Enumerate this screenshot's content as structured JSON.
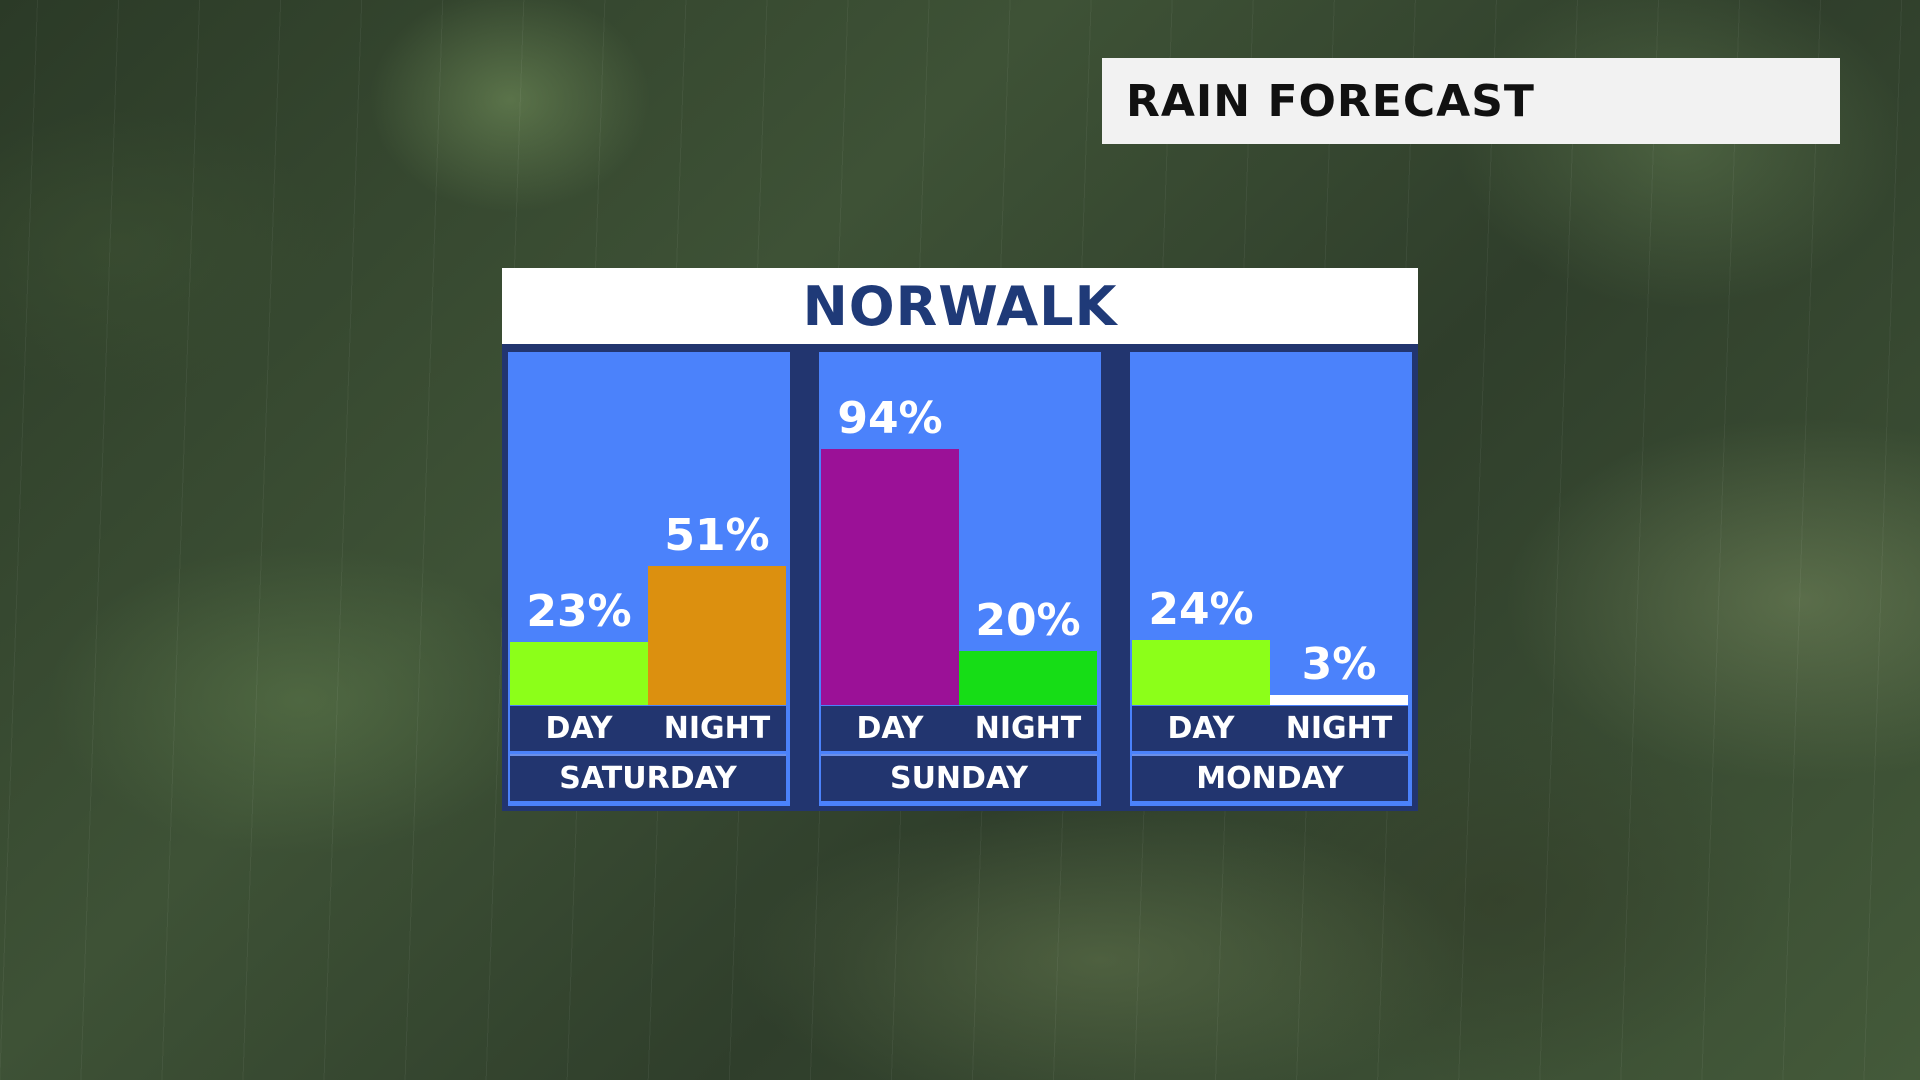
{
  "header": {
    "title": "RAIN FORECAST"
  },
  "panel": {
    "city": "NORWALK"
  },
  "colors": {
    "panel_background": "#4b82fb",
    "frame": "#22356f",
    "city_text": "#1f3a78"
  },
  "chart_data": {
    "type": "bar",
    "title": "NORWALK",
    "xlabel": "",
    "ylabel": "",
    "ylim": [
      0,
      100
    ],
    "unit": "%",
    "groups": [
      {
        "day": "SATURDAY",
        "bars": [
          {
            "period": "DAY",
            "value": 23,
            "label": "23%",
            "color": "#8cff19"
          },
          {
            "period": "NIGHT",
            "value": 51,
            "label": "51%",
            "color": "#dc900f"
          }
        ]
      },
      {
        "day": "SUNDAY",
        "bars": [
          {
            "period": "DAY",
            "value": 94,
            "label": "94%",
            "color": "#9b1197"
          },
          {
            "period": "NIGHT",
            "value": 20,
            "label": "20%",
            "color": "#16dd16"
          }
        ]
      },
      {
        "day": "MONDAY",
        "bars": [
          {
            "period": "DAY",
            "value": 24,
            "label": "24%",
            "color": "#8cff19"
          },
          {
            "period": "NIGHT",
            "value": 3,
            "label": "3%",
            "color": "#ffffff"
          }
        ]
      }
    ]
  }
}
